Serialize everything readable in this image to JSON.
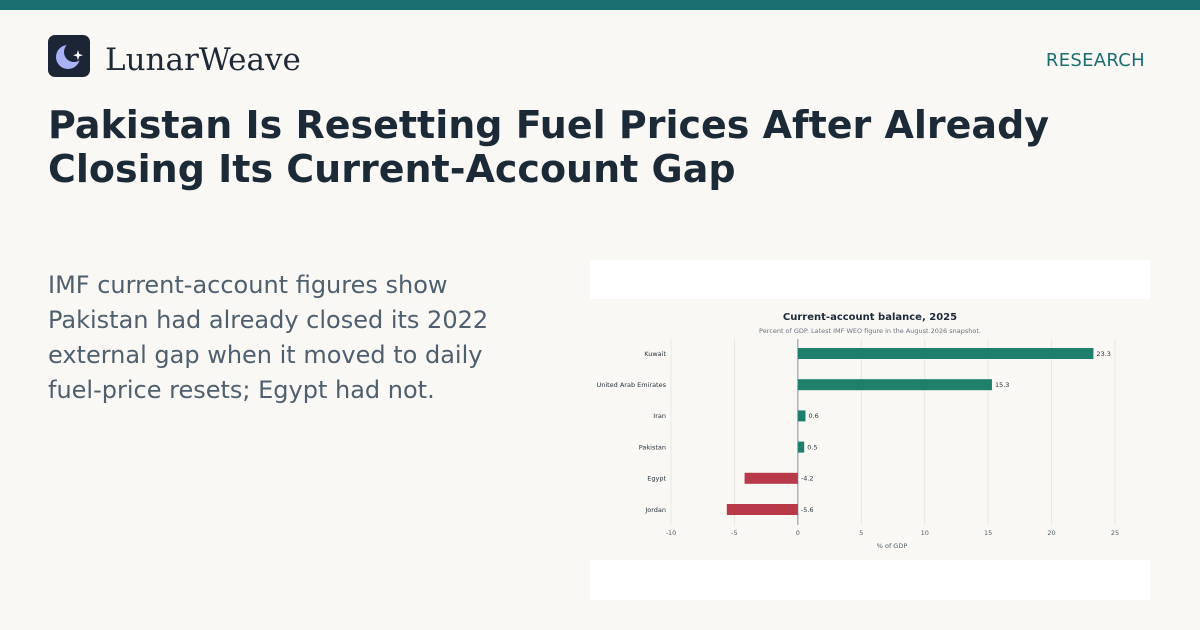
{
  "header": {
    "brand_name": "LunarWeave",
    "logo_icon": "crescent-moon-sparkle-icon",
    "section_tag": "RESEARCH",
    "accent_color": "#1a6e70"
  },
  "article": {
    "headline_lines": [
      "Pakistan Is Resetting Fuel Prices After Already",
      "Closing Its Current-Account Gap"
    ],
    "summary_lines": [
      "IMF current-account figures show",
      "Pakistan had already closed its 2022",
      "external gap when it moved to daily",
      "fuel-price resets; Egypt had not."
    ]
  },
  "chart_data": {
    "type": "bar",
    "orientation": "horizontal",
    "title": "Current-account balance, 2025",
    "subtitle": "Percent of GDP. Latest IMF WEO figure in the August 2026 snapshot.",
    "xlabel": "% of GDP",
    "ylabel": "",
    "xlim": [
      -10,
      25
    ],
    "xticks": [
      -10,
      -5,
      0,
      5,
      10,
      15,
      20,
      25
    ],
    "grid": true,
    "categories": [
      "Kuwait",
      "United Arab Emirates",
      "Iran",
      "Pakistan",
      "Egypt",
      "Jordan"
    ],
    "values": [
      23.3,
      15.3,
      0.6,
      0.5,
      -4.2,
      -5.6
    ],
    "value_labels": [
      "23.3",
      "15.3",
      "0.6",
      "0.5",
      "-4.2",
      "-5.6"
    ],
    "positive_color": "#1e7f6a",
    "negative_color": "#b83a48"
  }
}
